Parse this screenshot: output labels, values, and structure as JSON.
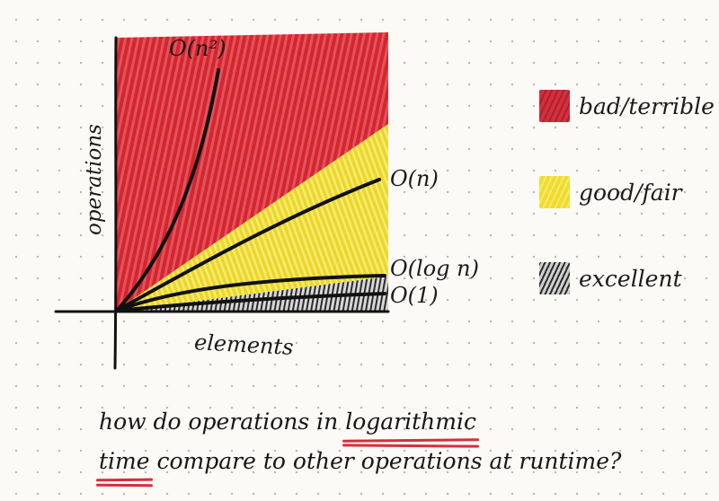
{
  "chart": {
    "y_axis_label": "operations",
    "x_axis_label": "elements",
    "curves": [
      {
        "label": "O(n²)",
        "region": "bad/terrible"
      },
      {
        "label": "O(n)",
        "region": "good/fair"
      },
      {
        "label": "O(log n)",
        "region": "excellent"
      },
      {
        "label": "O(1)",
        "region": "excellent"
      }
    ]
  },
  "legend": [
    {
      "label": "bad/terrible",
      "color": "#d62e3c"
    },
    {
      "label": "good/fair",
      "color": "#f0dc2c"
    },
    {
      "label": "excellent",
      "color": "#555555"
    }
  ],
  "question": {
    "part1": "how do operations in ",
    "highlight1": "logarithmic",
    "highlight2": "time",
    "part2": " compare to other operations at runtime?"
  },
  "colors": {
    "red": "#d62e3c",
    "yellow": "#f0dc2c",
    "ink": "#1a1a1a"
  }
}
